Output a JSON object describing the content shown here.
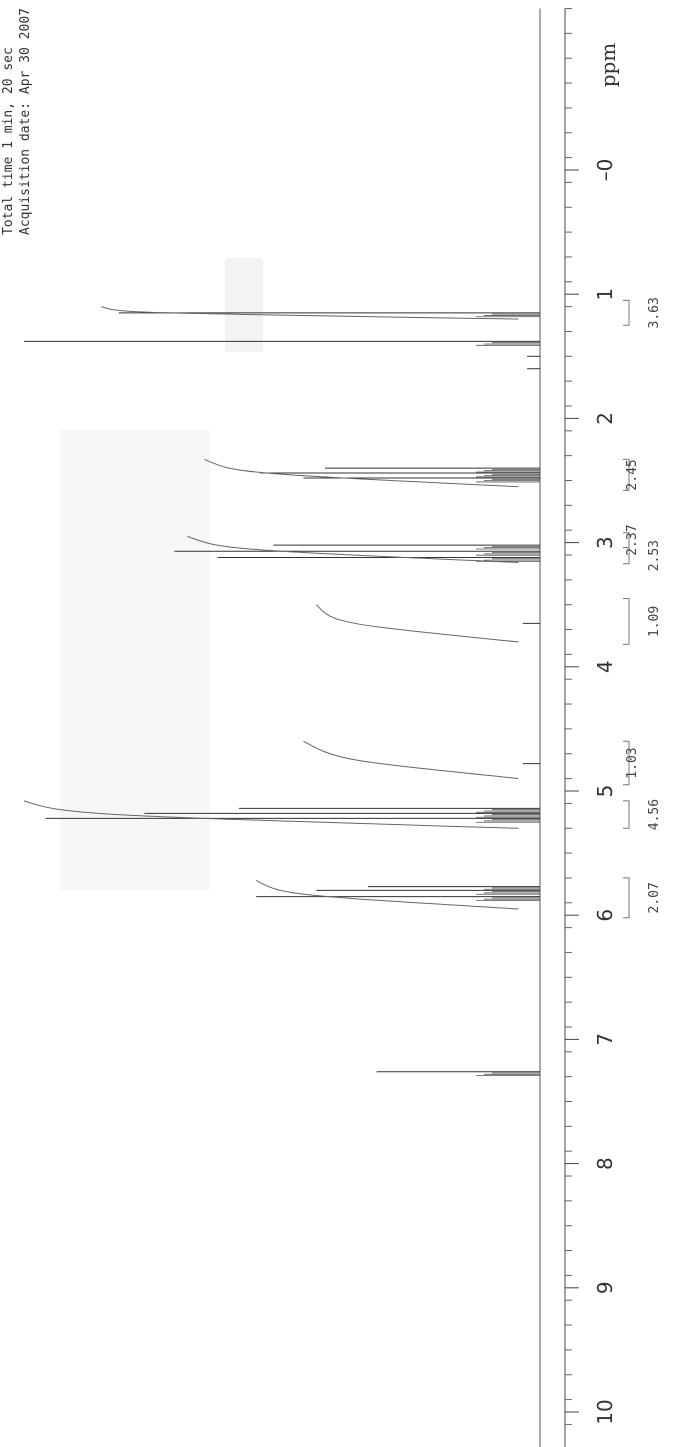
{
  "chart_data": {
    "type": "line",
    "title": "",
    "header_lines": [
      "Total time 1 min, 20 sec",
      "Acquisition date: Apr 30 2007"
    ],
    "xlabel": "ppm",
    "ylabel": "",
    "xlim": [
      10.3,
      -1.3
    ],
    "axis_reversed": true,
    "tick_values": [
      10,
      9,
      8,
      7,
      6,
      5,
      4,
      3,
      2,
      1,
      0
    ],
    "tick_labels": [
      "10",
      "9",
      "8",
      "7",
      "6",
      "5",
      "4",
      "3",
      "2",
      "1",
      "–0"
    ],
    "minor_tick_step": 0.2,
    "grid": false,
    "legend": "none",
    "series": [
      {
        "peaks": [
          {
            "ppm": 7.26,
            "height": 0.38
          },
          {
            "ppm": 5.85,
            "height": 0.66
          },
          {
            "ppm": 5.8,
            "height": 0.52
          },
          {
            "ppm": 5.77,
            "height": 0.4
          },
          {
            "ppm": 5.22,
            "height": 1.15
          },
          {
            "ppm": 5.18,
            "height": 0.92
          },
          {
            "ppm": 5.14,
            "height": 0.7
          },
          {
            "ppm": 4.78,
            "height": 0.04
          },
          {
            "ppm": 3.65,
            "height": 0.04
          },
          {
            "ppm": 3.12,
            "height": 0.75
          },
          {
            "ppm": 3.07,
            "height": 0.85
          },
          {
            "ppm": 3.02,
            "height": 0.62
          },
          {
            "ppm": 2.48,
            "height": 0.55
          },
          {
            "ppm": 2.44,
            "height": 0.65
          },
          {
            "ppm": 2.4,
            "height": 0.5
          },
          {
            "ppm": 1.38,
            "height": 1.2
          },
          {
            "ppm": 1.15,
            "height": 0.98
          },
          {
            "ppm": 1.5,
            "height": 0.03
          },
          {
            "ppm": 1.6,
            "height": 0.03
          }
        ]
      }
    ],
    "integrals": [
      {
        "from": 6.02,
        "to": 5.7,
        "value": "2.07"
      },
      {
        "from": 5.3,
        "to": 5.08,
        "value": "4.56"
      },
      {
        "from": 4.95,
        "to": 4.6,
        "value": "1.03"
      },
      {
        "from": 3.82,
        "to": 3.45,
        "value": "1.09"
      },
      {
        "from": 3.17,
        "to": 3.04,
        "value": "2.53"
      },
      {
        "from": 3.04,
        "to": 2.92,
        "value": "2.37"
      },
      {
        "from": 2.58,
        "to": 2.33,
        "value": "2.45"
      },
      {
        "from": 1.25,
        "to": 1.05,
        "value": "3.63"
      }
    ],
    "integral_curves": [
      {
        "from": 5.95,
        "to": 5.72,
        "level_start": 0.6,
        "level_end": 0.66
      },
      {
        "from": 5.3,
        "to": 5.08,
        "level_start": 1.1,
        "level_end": 1.2
      },
      {
        "from": 4.9,
        "to": 4.6,
        "level_start": 0.47,
        "level_end": 0.55
      },
      {
        "from": 3.8,
        "to": 3.5,
        "level_start": 0.48,
        "level_end": 0.52
      },
      {
        "from": 3.16,
        "to": 2.95,
        "level_start": 0.74,
        "level_end": 0.82
      },
      {
        "from": 2.55,
        "to": 2.33,
        "level_start": 0.71,
        "level_end": 0.78
      },
      {
        "from": 1.2,
        "to": 1.1,
        "level_start": 0.98,
        "level_end": 1.02
      }
    ]
  }
}
